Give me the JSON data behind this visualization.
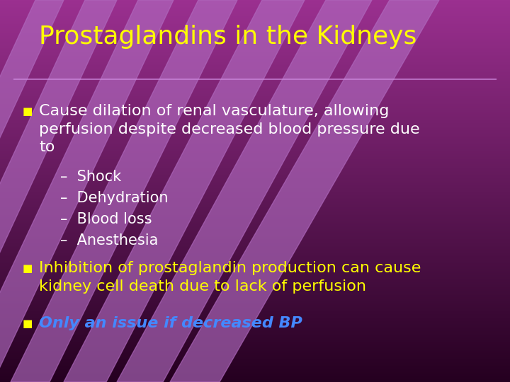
{
  "title": "Prostaglandins in the Kidneys",
  "title_color": "#FFFF00",
  "title_fontsize": 26,
  "background_top": "#9B3090",
  "background_bottom": "#3A0030",
  "stripe_color": "#B06ABF",
  "bullet_color": "#FFFF00",
  "bullet1_text_color": "#FFFFFF",
  "bullet2_text_color": "#FFFF00",
  "bullet3_text_color": "#4488FF",
  "bullet1": "Cause dilation of renal vasculature, allowing\nperfusion despite decreased blood pressure due\nto",
  "sub_bullets": [
    "Shock",
    "Dehydration",
    "Blood loss",
    "Anesthesia"
  ],
  "bullet2": "Inhibition of prostaglandin production can cause\nkidney cell death due to lack of perfusion",
  "bullet3": "Only an issue if decreased BP",
  "sub_bullet_color": "#FFFFFF",
  "sub_bullet_fontsize": 15,
  "bullet_fontsize": 16,
  "figsize": [
    7.2,
    5.4
  ],
  "dpi": 100
}
